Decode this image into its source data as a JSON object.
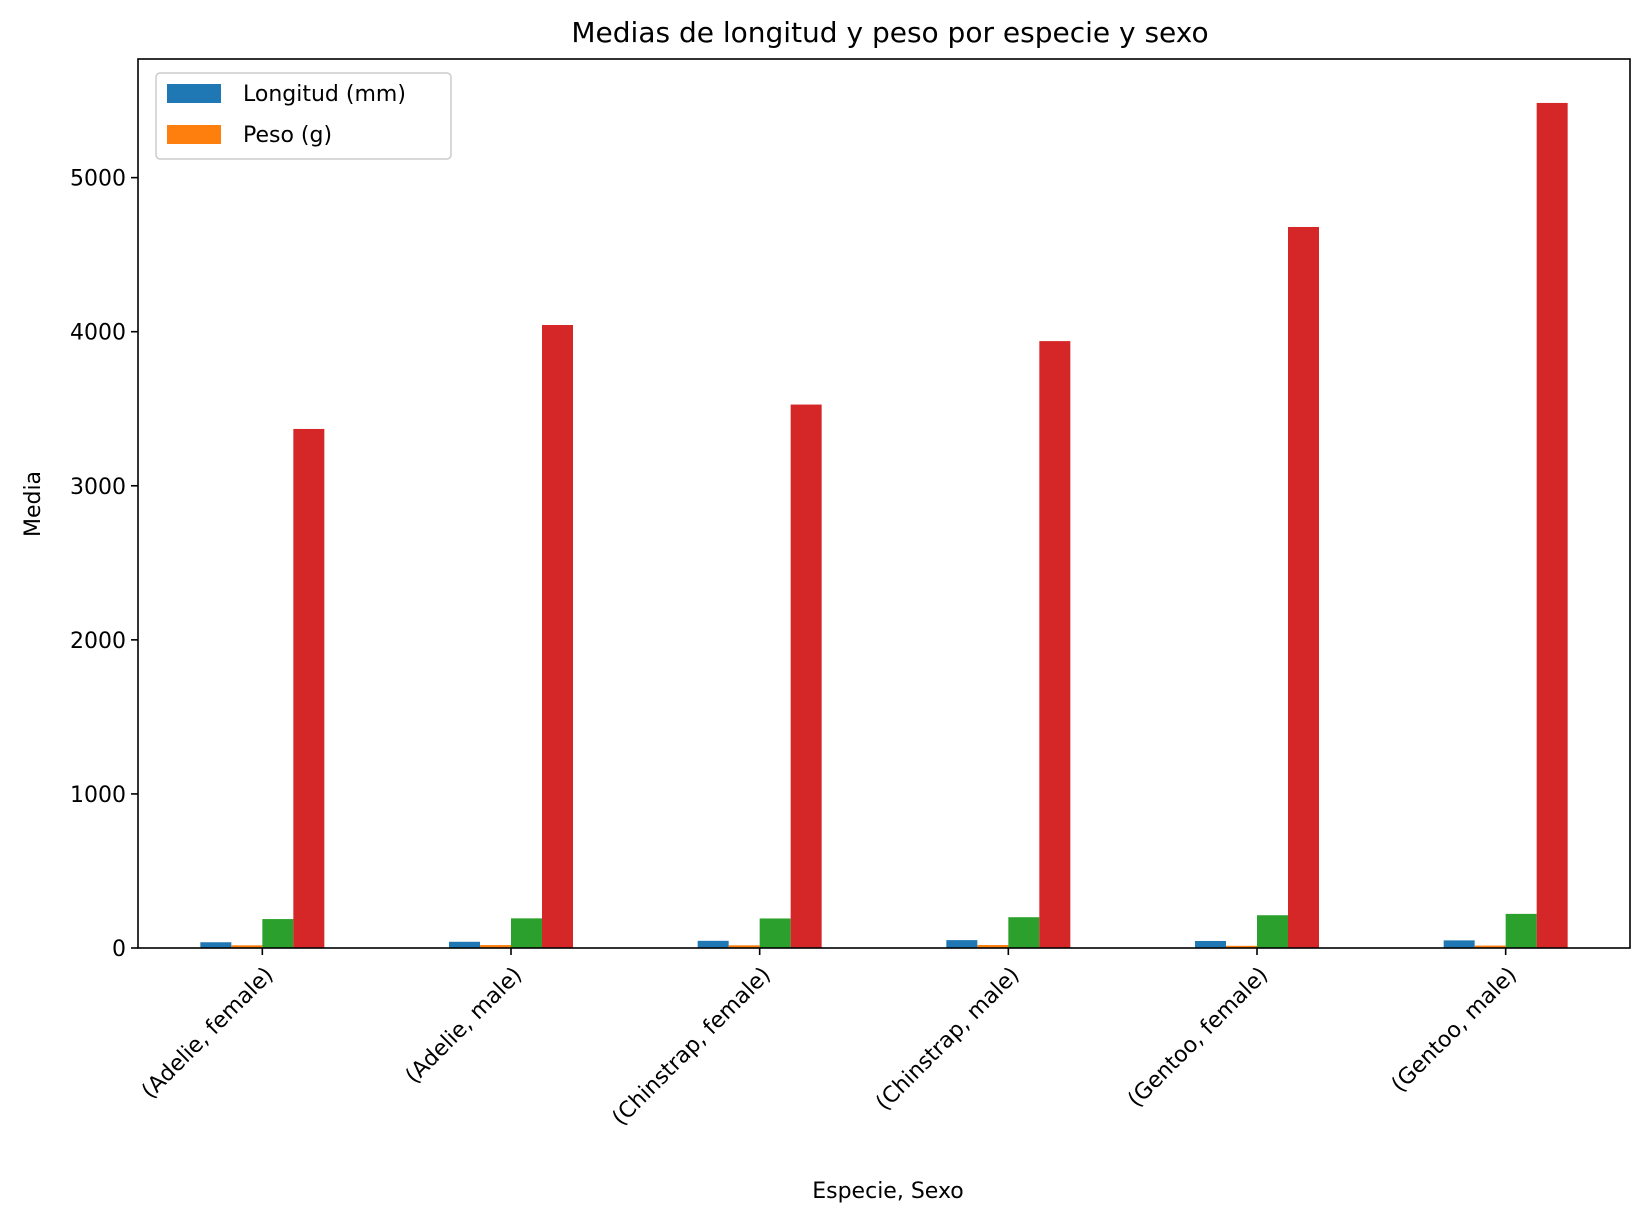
{
  "chart_data": {
    "type": "bar",
    "title": "Medias de longitud y peso por especie y sexo",
    "xlabel": "Especie, Sexo",
    "ylabel": "Media",
    "categories": [
      "(Adelie, female)",
      "(Adelie, male)",
      "(Chinstrap, female)",
      "(Chinstrap, male)",
      "(Gentoo, female)",
      "(Gentoo, male)"
    ],
    "ylim": [
      0,
      5770
    ],
    "yticks": [
      "0",
      "1000",
      "2000",
      "3000",
      "4000",
      "5000"
    ],
    "series": [
      {
        "name": "Longitud (mm)",
        "color": "#1f77b4",
        "values": [
          37.3,
          40.4,
          46.6,
          51.1,
          45.6,
          49.5
        ]
      },
      {
        "name": "Peso (g)",
        "color": "#ff7f0e",
        "values": [
          17.6,
          19.1,
          17.6,
          19.3,
          14.2,
          15.7
        ]
      },
      {
        "color": "#2ca02c",
        "values": [
          187.8,
          192.4,
          191.7,
          199.9,
          212.7,
          221.5
        ]
      },
      {
        "color": "#d62728",
        "values": [
          3368.8,
          4043.5,
          3527.2,
          3939.0,
          4679.7,
          5484.8
        ]
      }
    ],
    "legend": {
      "position": "top-left",
      "entries": [
        "Longitud (mm)",
        "Peso (g)"
      ]
    },
    "grid": false
  }
}
